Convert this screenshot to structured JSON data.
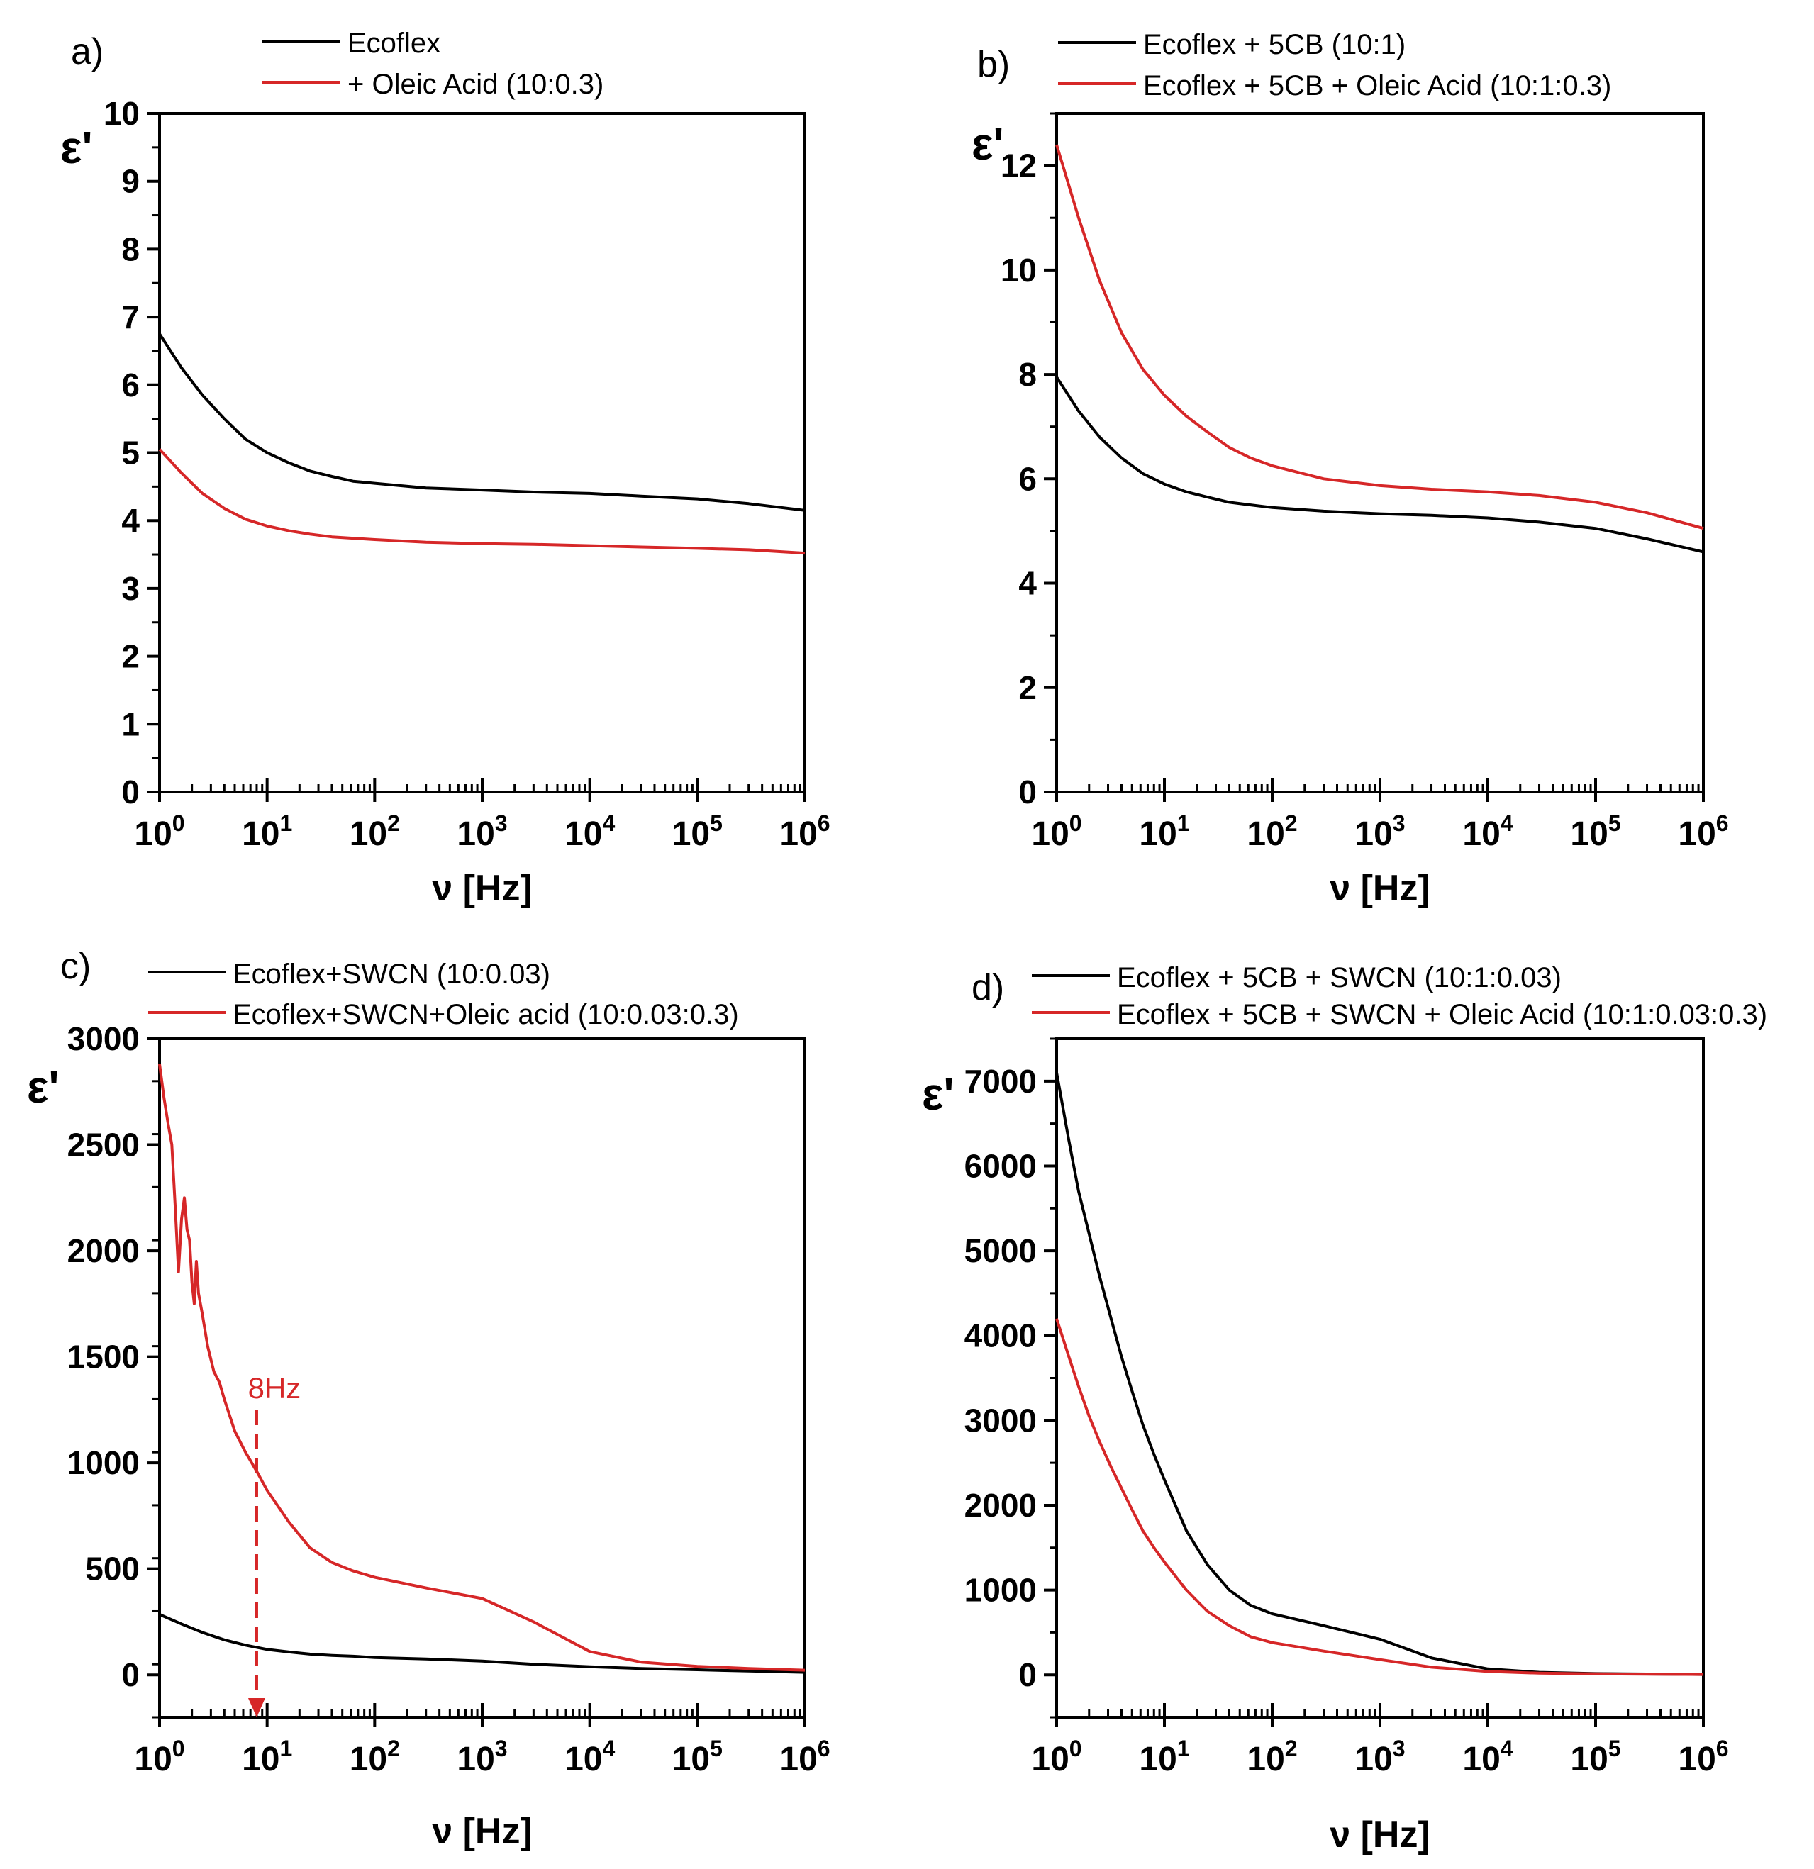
{
  "chart_data": [
    {
      "panel_label": "a)",
      "type": "line",
      "xscale": "log",
      "xlim": [
        0,
        6
      ],
      "ylim": [
        0,
        10
      ],
      "yticks": [
        0,
        1,
        2,
        3,
        4,
        5,
        6,
        7,
        8,
        9,
        10
      ],
      "ylabel": "ε'",
      "xlabel": "ν [Hz]",
      "series": [
        {
          "name": "Ecoflex",
          "color": "#000000",
          "x": [
            1,
            1.6,
            2.5,
            4,
            6.3,
            10,
            16,
            25,
            40,
            63,
            100,
            300,
            1000,
            3000,
            10000,
            30000,
            100000,
            300000,
            1000000
          ],
          "y": [
            6.75,
            6.25,
            5.85,
            5.5,
            5.2,
            5.0,
            4.85,
            4.73,
            4.65,
            4.58,
            4.55,
            4.48,
            4.45,
            4.42,
            4.4,
            4.36,
            4.32,
            4.25,
            4.15
          ]
        },
        {
          "name": "+ Oleic Acid (10:0.3)",
          "color": "#d62728",
          "x": [
            1,
            1.6,
            2.5,
            4,
            6.3,
            10,
            16,
            25,
            40,
            63,
            100,
            300,
            1000,
            3000,
            10000,
            30000,
            100000,
            300000,
            1000000
          ],
          "y": [
            5.05,
            4.7,
            4.4,
            4.18,
            4.02,
            3.92,
            3.85,
            3.8,
            3.76,
            3.74,
            3.72,
            3.68,
            3.66,
            3.65,
            3.63,
            3.61,
            3.59,
            3.57,
            3.52
          ]
        }
      ]
    },
    {
      "panel_label": "b)",
      "type": "line",
      "xscale": "log",
      "xlim": [
        0,
        6
      ],
      "ylim": [
        0,
        13
      ],
      "yticks": [
        0,
        2,
        4,
        6,
        8,
        10,
        12
      ],
      "ylabel": "ε'",
      "xlabel": "ν [Hz]",
      "series": [
        {
          "name": "Ecoflex + 5CB (10:1)",
          "color": "#000000",
          "x": [
            1,
            1.6,
            2.5,
            4,
            6.3,
            10,
            16,
            25,
            40,
            63,
            100,
            300,
            1000,
            3000,
            10000,
            30000,
            100000,
            300000,
            1000000
          ],
          "y": [
            7.95,
            7.3,
            6.8,
            6.4,
            6.1,
            5.9,
            5.75,
            5.65,
            5.55,
            5.5,
            5.45,
            5.38,
            5.33,
            5.3,
            5.25,
            5.17,
            5.05,
            4.85,
            4.6
          ]
        },
        {
          "name": "Ecoflex + 5CB + Oleic Acid (10:1:0.3)",
          "color": "#d62728",
          "x": [
            1,
            1.6,
            2.5,
            4,
            6.3,
            10,
            16,
            25,
            40,
            63,
            100,
            300,
            1000,
            3000,
            10000,
            30000,
            100000,
            300000,
            1000000
          ],
          "y": [
            12.4,
            11,
            9.8,
            8.8,
            8.1,
            7.6,
            7.2,
            6.9,
            6.6,
            6.4,
            6.25,
            6.0,
            5.87,
            5.8,
            5.75,
            5.68,
            5.55,
            5.35,
            5.05
          ]
        }
      ]
    },
    {
      "panel_label": "c)",
      "type": "line",
      "xscale": "log",
      "xlim": [
        0,
        6
      ],
      "ylim": [
        -200,
        3000
      ],
      "yticks": [
        0,
        500,
        1000,
        1500,
        2000,
        2500,
        3000
      ],
      "ylabel": "ε'",
      "xlabel": "ν [Hz]",
      "annotation": {
        "text": "8Hz",
        "x": 8
      },
      "series": [
        {
          "name": "Ecoflex+SWCN (10:0.03)",
          "color": "#000000",
          "x": [
            1,
            1.6,
            2.5,
            4,
            6.3,
            10,
            16,
            25,
            40,
            63,
            100,
            300,
            1000,
            3000,
            10000,
            30000,
            100000,
            300000,
            1000000
          ],
          "y": [
            285,
            240,
            200,
            165,
            140,
            120,
            108,
            98,
            92,
            88,
            82,
            75,
            65,
            50,
            38,
            30,
            24,
            18,
            12
          ]
        },
        {
          "name": "Ecoflex+SWCN+Oleic acid (10:0.03:0.3)",
          "color": "#d62728",
          "x": [
            1,
            1.1,
            1.2,
            1.3,
            1.4,
            1.5,
            1.6,
            1.7,
            1.8,
            1.9,
            2.0,
            2.1,
            2.2,
            2.3,
            2.5,
            2.8,
            3.2,
            3.6,
            4,
            5,
            6.3,
            8,
            10,
            16,
            25,
            40,
            63,
            100,
            300,
            1000,
            3000,
            10000,
            30000,
            100000,
            300000,
            1000000
          ],
          "y": [
            2880,
            2720,
            2600,
            2500,
            2200,
            1900,
            2150,
            2250,
            2100,
            2050,
            1850,
            1750,
            1950,
            1800,
            1700,
            1550,
            1430,
            1380,
            1300,
            1150,
            1050,
            960,
            870,
            720,
            600,
            530,
            490,
            460,
            410,
            360,
            250,
            110,
            60,
            40,
            30,
            22
          ]
        }
      ]
    },
    {
      "panel_label": "d)",
      "type": "line",
      "xscale": "log",
      "xlim": [
        0,
        6
      ],
      "ylim": [
        -500,
        7500
      ],
      "yticks": [
        0,
        1000,
        2000,
        3000,
        4000,
        5000,
        6000,
        7000
      ],
      "ylabel": "ε'",
      "xlabel": "ν [Hz]",
      "series": [
        {
          "name": "Ecoflex + 5CB + SWCN (10:1:0.03)",
          "color": "#000000",
          "x": [
            1,
            1.3,
            1.6,
            2,
            2.5,
            3.2,
            4,
            5,
            6.3,
            8,
            10,
            16,
            25,
            40,
            63,
            100,
            300,
            1000,
            3000,
            10000,
            30000,
            100000,
            300000,
            1000000
          ],
          "y": [
            7100,
            6300,
            5700,
            5200,
            4700,
            4200,
            3750,
            3350,
            2950,
            2600,
            2300,
            1700,
            1300,
            1000,
            820,
            720,
            580,
            420,
            200,
            70,
            30,
            15,
            10,
            5
          ]
        },
        {
          "name": "Ecoflex + 5CB + SWCN + Oleic Acid (10:1:0.03:0.3)",
          "color": "#d62728",
          "x": [
            1,
            1.3,
            1.6,
            2,
            2.5,
            3.2,
            4,
            5,
            6.3,
            8,
            10,
            16,
            25,
            40,
            63,
            100,
            300,
            1000,
            3000,
            10000,
            30000,
            100000,
            300000,
            1000000
          ],
          "y": [
            4200,
            3750,
            3400,
            3050,
            2750,
            2450,
            2200,
            1950,
            1700,
            1500,
            1330,
            1000,
            750,
            580,
            450,
            380,
            280,
            180,
            90,
            40,
            20,
            12,
            8,
            5
          ]
        }
      ]
    }
  ]
}
